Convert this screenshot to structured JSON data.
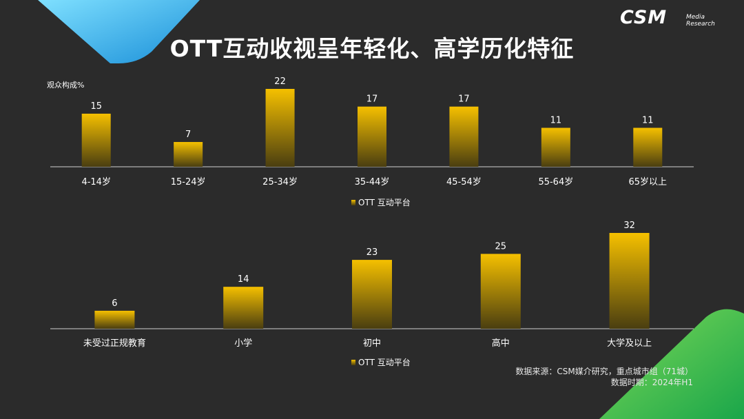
{
  "page": {
    "title": "OTT互动收视呈年轻化、高学历化特征",
    "logo": {
      "main": "CSM",
      "sub_line1": "Media",
      "sub_line2": "Research"
    },
    "source_line1": "数据来源：CSM媒介研究，重点城市组（71城）",
    "source_line2": "数据时期：2024年H1",
    "colors": {
      "background": "#2b2b2b",
      "bar_top": "#f5c000",
      "bar_bottom": "#4a3e10",
      "accent_blue": "#1aa0e0",
      "accent_green": "#3cb44b"
    }
  },
  "chart_data": [
    {
      "type": "bar",
      "ylabel": "观众构成%",
      "categories": [
        "4-14岁",
        "15-24岁",
        "25-34岁",
        "35-44岁",
        "45-54岁",
        "55-64岁",
        "65岁以上"
      ],
      "series": [
        {
          "name": "OTT 互动平台",
          "values": [
            15,
            7,
            22,
            17,
            17,
            11,
            11
          ]
        }
      ],
      "ylim": [
        0,
        22
      ],
      "legend": "bottom",
      "grid": false
    },
    {
      "type": "bar",
      "categories": [
        "未受过正规教育",
        "小学",
        "初中",
        "高中",
        "大学及以上"
      ],
      "series": [
        {
          "name": "OTT 互动平台",
          "values": [
            6,
            14,
            23,
            25,
            32
          ]
        }
      ],
      "ylim": [
        0,
        32
      ],
      "legend": "bottom",
      "grid": false
    }
  ]
}
